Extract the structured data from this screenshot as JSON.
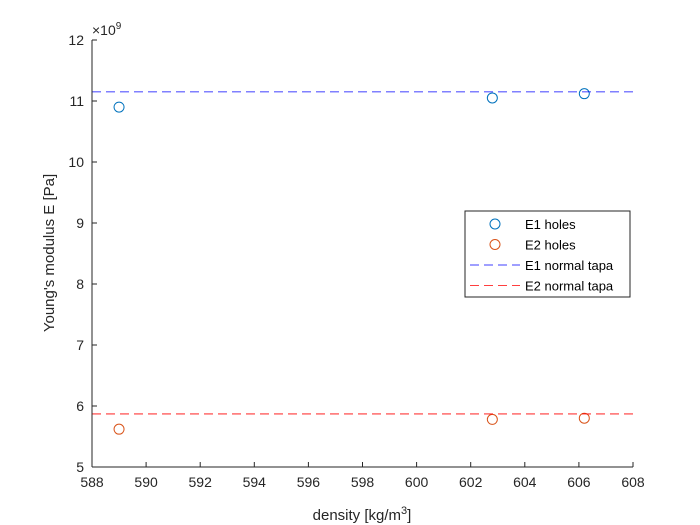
{
  "chart_data": {
    "type": "scatter",
    "xlabel": "density [kg/m",
    "xlabel_sup": "3",
    "xlabel_close": "]",
    "ylabel": "Young's modulus E [Pa]",
    "y_exponent_base": "×10",
    "y_exponent_power": "9",
    "xlim": [
      588,
      608
    ],
    "ylim": [
      5,
      12
    ],
    "xticks": [
      588,
      590,
      592,
      594,
      596,
      598,
      600,
      602,
      604,
      606,
      608
    ],
    "yticks": [
      5,
      6,
      7,
      8,
      9,
      10,
      11,
      12
    ],
    "grid": false,
    "legend_position": "right",
    "series": [
      {
        "name": "E1 holes",
        "kind": "scatter",
        "color": "#0072BD",
        "x": [
          589.0,
          602.8,
          606.2
        ],
        "y": [
          10.9,
          11.05,
          11.12
        ]
      },
      {
        "name": "E2 holes",
        "kind": "scatter",
        "color": "#D95319",
        "x": [
          589.0,
          602.8,
          606.2
        ],
        "y": [
          5.62,
          5.78,
          5.8
        ]
      },
      {
        "name": "E1 normal tapa",
        "kind": "hline",
        "color": "#0000FF",
        "y": 11.15
      },
      {
        "name": "E2 normal tapa",
        "kind": "hline",
        "color": "#FF0000",
        "y": 5.87
      }
    ]
  }
}
